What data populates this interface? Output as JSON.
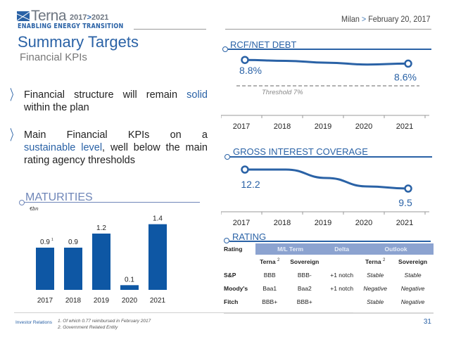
{
  "header": {
    "logo_name": "Terna",
    "logo_years_start": "2017",
    "logo_years_sep": ">",
    "logo_years_end": "2021",
    "tagline": "ENABLING ENERGY TRANSITION",
    "location": "Milan",
    "location_sep": ">",
    "date": "February 20, 2017"
  },
  "title": "Summary Targets",
  "subtitle": "Financial KPIs",
  "bullets": [
    {
      "before": "Financial structure will remain ",
      "highlight": "solid",
      "after": " within the plan"
    },
    {
      "first_line": [
        "Main",
        "Financial",
        "KPIs",
        "on",
        "a"
      ],
      "highlight": "sustainable level",
      "after": ", well below the main rating agency thresholds"
    }
  ],
  "colors": {
    "brand_blue": "#2a62a6",
    "bar_blue": "#0e57a4",
    "section_light": "#6f86b8",
    "table_header_bg": "#8ca3d0",
    "threshold_gray": "#999999"
  },
  "chart_data": [
    {
      "type": "bar",
      "title": "MATURITIES",
      "ylabel": "€bn",
      "categories": [
        "2017",
        "2018",
        "2019",
        "2020",
        "2021"
      ],
      "values": [
        0.9,
        0.9,
        1.2,
        0.1,
        1.4
      ],
      "value_labels": [
        "0.9",
        "0.9",
        "1.2",
        "0.1",
        "1.4"
      ],
      "label_footnotes": [
        "1",
        "",
        "",
        "",
        ""
      ],
      "ylim": [
        0,
        1.5
      ]
    },
    {
      "type": "line",
      "title": "RCF/NET DEBT",
      "categories": [
        "2017",
        "2018",
        "2019",
        "2020",
        "2021"
      ],
      "values": [
        8.8,
        8.75,
        8.65,
        8.55,
        8.6
      ],
      "labeled_points": [
        {
          "index": 0,
          "label": "8.8%"
        },
        {
          "index": 4,
          "label": "8.6%"
        }
      ],
      "threshold": {
        "value": 7,
        "label": "Threshold 7%"
      },
      "ylim": [
        5,
        10
      ]
    },
    {
      "type": "line",
      "title": "GROSS INTEREST COVERAGE",
      "categories": [
        "2017",
        "2018",
        "2019",
        "2020",
        "2021"
      ],
      "values": [
        12.2,
        12.2,
        11.0,
        9.8,
        9.5
      ],
      "labeled_points": [
        {
          "index": 0,
          "label": "12.2"
        },
        {
          "index": 4,
          "label": "9.5"
        }
      ],
      "ylim": [
        5,
        14
      ]
    }
  ],
  "rating": {
    "title": "RATING",
    "header_label": "Rating",
    "groups": [
      "M/L Term",
      "Delta",
      "Outlook"
    ],
    "sub_terna": "Terna",
    "sub_sup": "2",
    "sub_sovereign": "Sovereign",
    "rows": [
      {
        "agency": "S&P",
        "terna": "BBB",
        "sovereign": "BBB-",
        "delta": "+1 notch",
        "outlook_terna": "Stable",
        "outlook_sovereign": "Stable"
      },
      {
        "agency": "Moody's",
        "terna": "Baa1",
        "sovereign": "Baa2",
        "delta": "+1 notch",
        "outlook_terna": "Negative",
        "outlook_sovereign": "Negative"
      },
      {
        "agency": "Fitch",
        "terna": "BBB+",
        "sovereign": "BBB+",
        "delta": "",
        "outlook_terna": "Stable",
        "outlook_sovereign": "Negative"
      }
    ]
  },
  "footer": {
    "section": "Investor Relations",
    "footnotes": [
      "1. Of which 0.77 reimbursed in February 2017",
      "2. Government Related Entity"
    ],
    "page_number": "31"
  }
}
